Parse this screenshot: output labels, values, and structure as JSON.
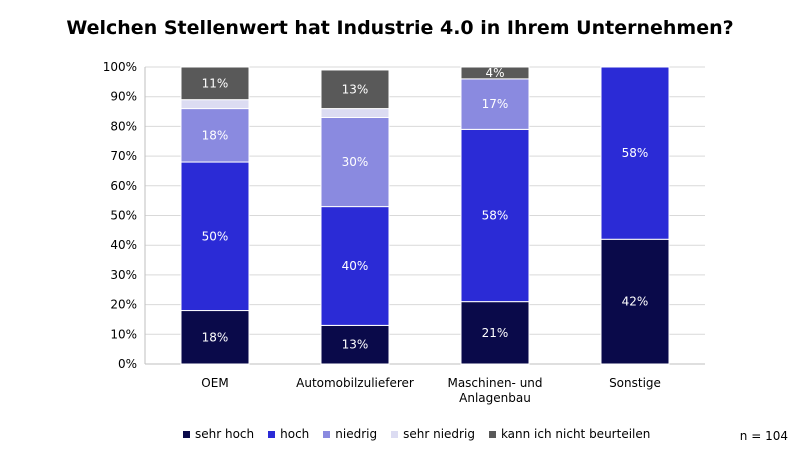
{
  "chart_data": {
    "type": "bar",
    "stacked": true,
    "title": "Welchen Stellenwert hat Industrie 4.0 in Ihrem Unternehmen?",
    "categories": [
      "OEM",
      "Automobilzulieferer",
      "Maschinen- und Anlagenbau",
      "Sonstige"
    ],
    "series": [
      {
        "name": "sehr hoch",
        "color": "#0a0a4a",
        "values": [
          18,
          13,
          21,
          42
        ]
      },
      {
        "name": "hoch",
        "color": "#2b2bd6",
        "values": [
          50,
          40,
          58,
          58
        ]
      },
      {
        "name": "niedrig",
        "color": "#8a8ae0",
        "values": [
          18,
          30,
          17,
          0
        ]
      },
      {
        "name": "sehr niedrig",
        "color": "#dcdcf2",
        "values": [
          3,
          3,
          0,
          0
        ]
      },
      {
        "name": "kann ich nicht beurteilen",
        "color": "#595959",
        "values": [
          11,
          13,
          4,
          0
        ]
      }
    ],
    "data_labels": [
      [
        "18%",
        "13%",
        "21%",
        "42%"
      ],
      [
        "50%",
        "40%",
        "58%",
        "58%"
      ],
      [
        "18%",
        "30%",
        "17%",
        ""
      ],
      [
        "",
        "",
        "",
        ""
      ],
      [
        "11%",
        "13%",
        "4%",
        ""
      ]
    ],
    "y_ticks": [
      "0%",
      "10%",
      "20%",
      "30%",
      "40%",
      "50%",
      "60%",
      "70%",
      "80%",
      "90%",
      "100%"
    ],
    "ylim": [
      0,
      100
    ],
    "grid": true,
    "legend_position": "bottom",
    "note": "n = 104"
  }
}
